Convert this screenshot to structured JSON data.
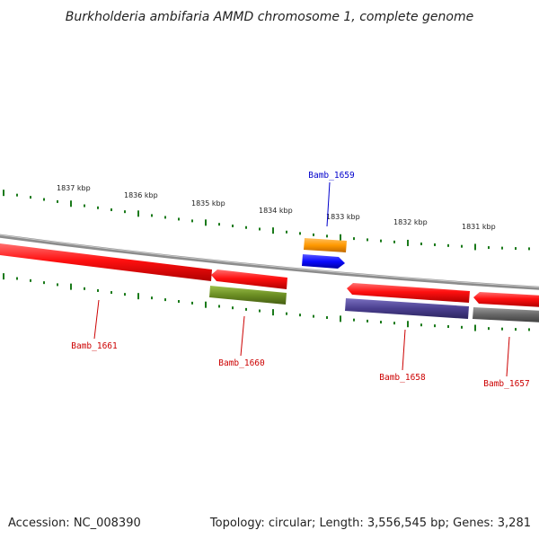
{
  "title": "Burkholderia ambifaria AMMD chromosome 1, complete genome",
  "footer": {
    "accession": "Accession: NC_008390",
    "summary": "Topology: circular; Length: 3,556,545 bp; Genes: 3,281"
  },
  "ruler": {
    "tick_labels": [
      "1837 kbp",
      "1836 kbp",
      "1835 kbp",
      "1834 kbp",
      "1833 kbp",
      "1832 kbp",
      "1831 kbp"
    ],
    "tick_color": "#1a7a1a"
  },
  "backbone_color": "#8c8c8c",
  "genes": [
    {
      "label": "Bamb_1661",
      "label_color": "#cc0000",
      "color": "#ff1a1a",
      "strand": "minus"
    },
    {
      "label": "Bamb_1660",
      "label_color": "#cc0000",
      "color": "#ff1a1a",
      "strand": "minus"
    },
    {
      "label": "Bamb_1659",
      "label_color": "#0000cc",
      "color": "#0a0aff",
      "strand": "plus"
    },
    {
      "label": "Bamb_1658",
      "label_color": "#cc0000",
      "color": "#ff1a1a",
      "strand": "minus"
    },
    {
      "label": "Bamb_1657",
      "label_color": "#cc0000",
      "color": "#ff1a1a",
      "strand": "minus"
    }
  ],
  "features": [
    {
      "name": "orange",
      "color": "#ff9900"
    },
    {
      "name": "olive",
      "color": "#6b8e23"
    },
    {
      "name": "slate",
      "color": "#4a3f8f"
    },
    {
      "name": "gray",
      "color": "#666666"
    }
  ]
}
